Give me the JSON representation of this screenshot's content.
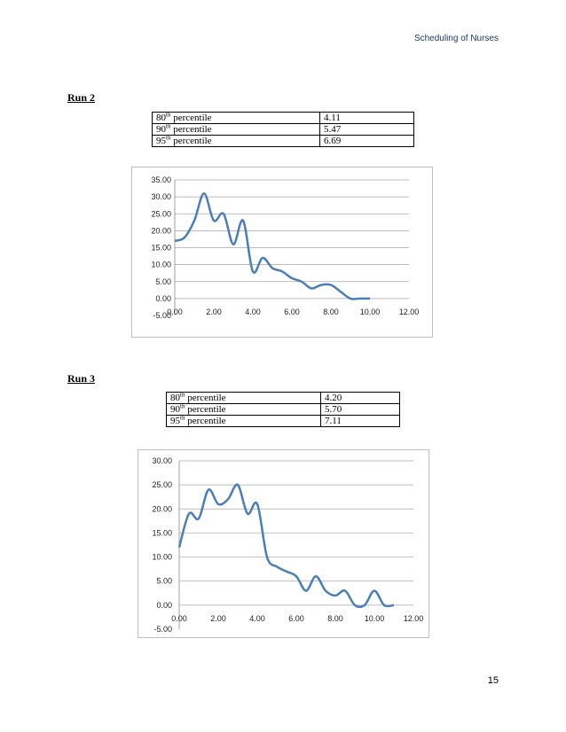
{
  "header": {
    "title": "Scheduling of Nurses"
  },
  "page_number": "15",
  "runs": [
    {
      "label": "Run 2",
      "percentiles": [
        {
          "num": "80",
          "sup": "th",
          "text": " percentile",
          "value": "4.11"
        },
        {
          "num": "90",
          "sup": "th",
          "text": " percentile",
          "value": "5.47"
        },
        {
          "num": "95",
          "sup": "th",
          "text": " percentile",
          "value": "6.69"
        }
      ]
    },
    {
      "label": "Run 3",
      "percentiles": [
        {
          "num": "80",
          "sup": "th",
          "text": " percentile",
          "value": "4.20"
        },
        {
          "num": "90",
          "sup": "th",
          "text": " percentile",
          "value": "5.70"
        },
        {
          "num": "95",
          "sup": "th",
          "text": " percentile",
          "value": "7.11"
        }
      ]
    }
  ],
  "chart_data": [
    {
      "type": "line",
      "xlim": [
        0,
        12
      ],
      "ylim": [
        -5,
        35
      ],
      "xticks": [
        "0.00",
        "2.00",
        "4.00",
        "6.00",
        "8.00",
        "10.00",
        "12.00"
      ],
      "yticks": [
        "-5.00",
        "0.00",
        "5.00",
        "10.00",
        "15.00",
        "20.00",
        "25.00",
        "30.00",
        "35.00"
      ],
      "xtick_values": [
        0,
        2,
        4,
        6,
        8,
        10,
        12
      ],
      "ytick_values": [
        -5,
        0,
        5,
        10,
        15,
        20,
        25,
        30,
        35
      ],
      "grid": true,
      "series": [
        {
          "color": "#4a7ebb",
          "x": [
            0,
            0.5,
            1,
            1.5,
            2,
            2.5,
            3,
            3.5,
            4,
            4.5,
            5,
            5.5,
            6,
            6.5,
            7,
            7.5,
            8,
            8.5,
            9,
            9.5,
            10
          ],
          "y": [
            17,
            18,
            23,
            31,
            23,
            25,
            16,
            23,
            8,
            12,
            9,
            8,
            6,
            5,
            3,
            4,
            4,
            2,
            0,
            0,
            0
          ]
        }
      ]
    },
    {
      "type": "line",
      "xlim": [
        0,
        12
      ],
      "ylim": [
        -5,
        30
      ],
      "xticks": [
        "0.00",
        "2.00",
        "4.00",
        "6.00",
        "8.00",
        "10.00",
        "12.00"
      ],
      "yticks": [
        "-5.00",
        "0.00",
        "5.00",
        "10.00",
        "15.00",
        "20.00",
        "25.00",
        "30.00"
      ],
      "xtick_values": [
        0,
        2,
        4,
        6,
        8,
        10,
        12
      ],
      "ytick_values": [
        -5,
        0,
        5,
        10,
        15,
        20,
        25,
        30
      ],
      "grid": true,
      "series": [
        {
          "color": "#4a7ebb",
          "x": [
            0,
            0.5,
            1,
            1.5,
            2,
            2.5,
            3,
            3.5,
            4,
            4.5,
            5,
            5.5,
            6,
            6.5,
            7,
            7.5,
            8,
            8.5,
            9,
            9.5,
            10,
            10.5,
            11
          ],
          "y": [
            12,
            19,
            18,
            24,
            21,
            22,
            25,
            19,
            21,
            10,
            8,
            7,
            6,
            3,
            6,
            3,
            2,
            3,
            0,
            0,
            3,
            0,
            0
          ]
        }
      ]
    }
  ]
}
